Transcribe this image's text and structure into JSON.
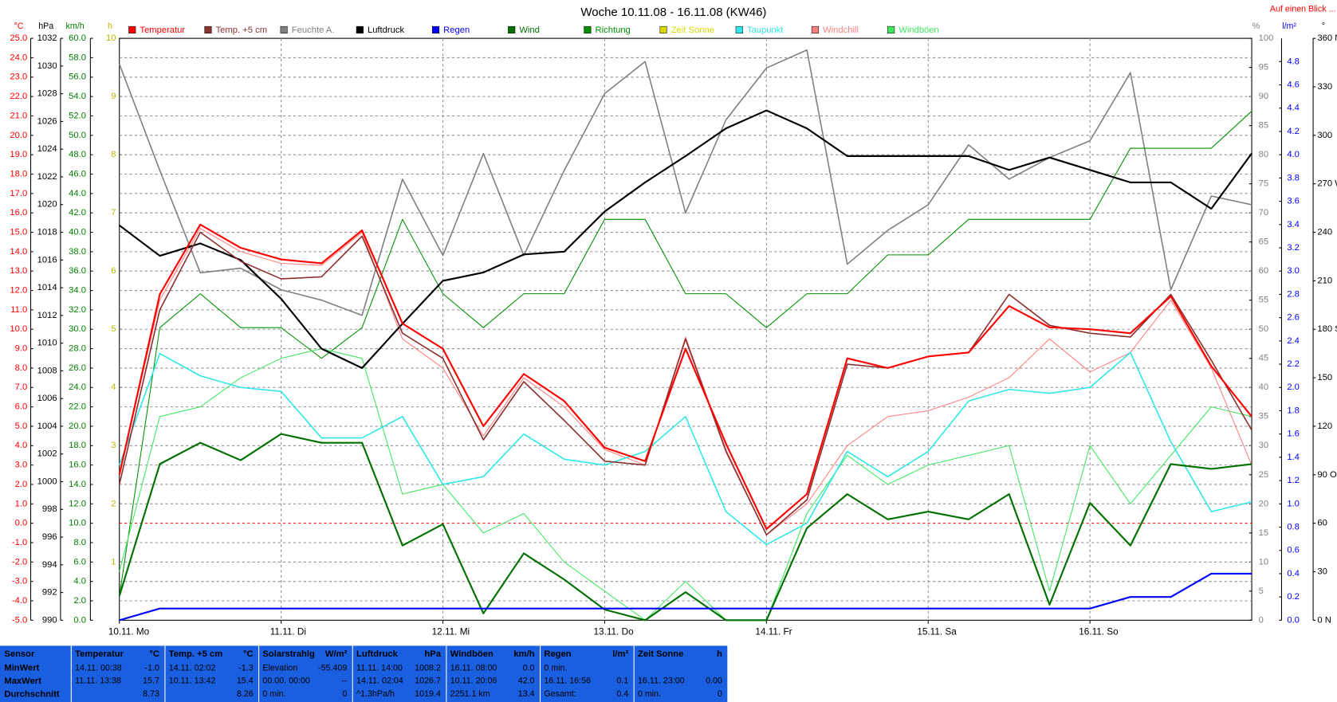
{
  "chart_data": {
    "type": "line",
    "title": "Woche 10.11.08 - 16.11.08 (KW46)",
    "link": "Auf einen Blick ...",
    "xlim": [
      0,
      168
    ],
    "xticks": [
      {
        "value": 0,
        "label": "10.11. Mo"
      },
      {
        "value": 24,
        "label": "11.11. Di"
      },
      {
        "value": 48,
        "label": "12.11. Mi"
      },
      {
        "value": 72,
        "label": "13.11. Do"
      },
      {
        "value": 96,
        "label": "14.11. Fr"
      },
      {
        "value": 120,
        "label": "15.11. Sa"
      },
      {
        "value": 144,
        "label": "16.11. So"
      }
    ],
    "x": [
      0,
      6,
      12,
      18,
      24,
      30,
      36,
      42,
      48,
      54,
      60,
      66,
      72,
      78,
      84,
      90,
      96,
      102,
      108,
      114,
      120,
      126,
      132,
      138,
      144,
      150,
      156,
      162,
      168
    ],
    "axes": {
      "C": {
        "label": "°C",
        "color": "#ff0000",
        "lim": [
          -5,
          25
        ],
        "ticks": [
          {
            "value": -5,
            "label": "-5.0"
          },
          {
            "value": -4,
            "label": "-4.0"
          },
          {
            "value": -3,
            "label": "-3.0"
          },
          {
            "value": -2,
            "label": "-2.0"
          },
          {
            "value": -1,
            "label": "-1.0"
          },
          {
            "value": 0,
            "label": "0.0"
          },
          {
            "value": 1,
            "label": "1.0"
          },
          {
            "value": 2,
            "label": "2.0"
          },
          {
            "value": 3,
            "label": "3.0"
          },
          {
            "value": 4,
            "label": "4.0"
          },
          {
            "value": 5,
            "label": "5.0"
          },
          {
            "value": 6,
            "label": "6.0"
          },
          {
            "value": 7,
            "label": "7.0"
          },
          {
            "value": 8,
            "label": "8.0"
          },
          {
            "value": 9,
            "label": "9.0"
          },
          {
            "value": 10,
            "label": "10.0"
          },
          {
            "value": 11,
            "label": "11.0"
          },
          {
            "value": 12,
            "label": "12.0"
          },
          {
            "value": 13,
            "label": "13.0"
          },
          {
            "value": 14,
            "label": "14.0"
          },
          {
            "value": 15,
            "label": "15.0"
          },
          {
            "value": 16,
            "label": "16.0"
          },
          {
            "value": 17,
            "label": "17.0"
          },
          {
            "value": 18,
            "label": "18.0"
          },
          {
            "value": 19,
            "label": "19.0"
          },
          {
            "value": 20,
            "label": "20.0"
          },
          {
            "value": 21,
            "label": "21.0"
          },
          {
            "value": 22,
            "label": "22.0"
          },
          {
            "value": 23,
            "label": "23.0"
          },
          {
            "value": 24,
            "label": "24.0"
          },
          {
            "value": 25,
            "label": "25.0"
          }
        ]
      },
      "hPa": {
        "label": "hPa",
        "color": "#000000",
        "lim": [
          990,
          1032
        ],
        "ticks": [
          990,
          992,
          994,
          996,
          998,
          1000,
          1002,
          1004,
          1006,
          1008,
          1010,
          1012,
          1014,
          1016,
          1018,
          1020,
          1022,
          1024,
          1026,
          1028,
          1030,
          1032
        ]
      },
      "kmh": {
        "label": "km/h",
        "color": "#008000",
        "lim": [
          0,
          60
        ],
        "ticks": [
          {
            "value": 0,
            "label": "0.0"
          },
          {
            "value": 2,
            "label": "2.0"
          },
          {
            "value": 4,
            "label": "4.0"
          },
          {
            "value": 6,
            "label": "6.0"
          },
          {
            "value": 8,
            "label": "8.0"
          },
          {
            "value": 10,
            "label": "10.0"
          },
          {
            "value": 12,
            "label": "12.0"
          },
          {
            "value": 14,
            "label": "14.0"
          },
          {
            "value": 16,
            "label": "16.0"
          },
          {
            "value": 18,
            "label": "18.0"
          },
          {
            "value": 20,
            "label": "20.0"
          },
          {
            "value": 22,
            "label": "22.0"
          },
          {
            "value": 24,
            "label": "24.0"
          },
          {
            "value": 26,
            "label": "26.0"
          },
          {
            "value": 28,
            "label": "28.0"
          },
          {
            "value": 30,
            "label": "30.0"
          },
          {
            "value": 32,
            "label": "32.0"
          },
          {
            "value": 34,
            "label": "34.0"
          },
          {
            "value": 36,
            "label": "36.0"
          },
          {
            "value": 38,
            "label": "38.0"
          },
          {
            "value": 40,
            "label": "40.0"
          },
          {
            "value": 42,
            "label": "42.0"
          },
          {
            "value": 44,
            "label": "44.0"
          },
          {
            "value": 46,
            "label": "46.0"
          },
          {
            "value": 48,
            "label": "48.0"
          },
          {
            "value": 50,
            "label": "50.0"
          },
          {
            "value": 52,
            "label": "52.0"
          },
          {
            "value": 54,
            "label": "54.0"
          },
          {
            "value": 56,
            "label": "56.0"
          },
          {
            "value": 58,
            "label": "58.0"
          },
          {
            "value": 60,
            "label": "60.0"
          }
        ]
      },
      "h": {
        "label": "h",
        "color": "#b8b800",
        "lim": [
          0,
          10
        ],
        "ticks": [
          1,
          2,
          3,
          4,
          5,
          6,
          7,
          8,
          9,
          10
        ]
      },
      "pct": {
        "label": "%",
        "color": "#808080",
        "lim": [
          0,
          100
        ],
        "ticks": [
          0,
          5,
          10,
          15,
          20,
          25,
          30,
          35,
          40,
          45,
          50,
          55,
          60,
          65,
          70,
          75,
          80,
          85,
          90,
          95,
          100
        ]
      },
      "lm2": {
        "label": "l/m²",
        "color": "#0000ff",
        "lim": [
          0,
          5
        ],
        "ticks": [
          {
            "value": 0,
            "label": "0.0"
          },
          0.2,
          0.4,
          0.6,
          0.8,
          {
            "value": 1,
            "label": "1.0"
          },
          1.2,
          1.4,
          1.6,
          1.8,
          {
            "value": 2,
            "label": "2.0"
          },
          2.2,
          2.4,
          2.6,
          2.8,
          {
            "value": 3,
            "label": "3.0"
          },
          3.2,
          3.4,
          3.6,
          3.8,
          {
            "value": 4,
            "label": "4.0"
          },
          4.2,
          4.4,
          4.6,
          4.8
        ]
      },
      "deg": {
        "label": "°",
        "color": "#000000",
        "lim": [
          0,
          360
        ],
        "ticks": [
          {
            "value": 0,
            "label": "0 N"
          },
          30,
          60,
          {
            "value": 90,
            "label": "90 O"
          },
          120,
          150,
          {
            "value": 180,
            "label": "180 S"
          },
          210,
          240,
          {
            "value": 270,
            "label": "270 W"
          },
          300,
          330,
          {
            "value": 360,
            "label": "360 N"
          }
        ]
      }
    },
    "grid": true,
    "series": [
      {
        "name": "Temperatur",
        "color": "#ff0000",
        "axis": "C",
        "width": 2,
        "values": [
          2.5,
          11.8,
          15.4,
          14.2,
          13.6,
          13.4,
          15.1,
          10.3,
          9.0,
          5.0,
          7.7,
          6.3,
          3.9,
          3.2,
          9.0,
          4.1,
          -0.3,
          1.5,
          8.5,
          8.0,
          8.6,
          8.8,
          11.2,
          10.1,
          10.0,
          9.8,
          11.7,
          8.1,
          5.5
        ]
      },
      {
        "name": "Temp. +5 cm",
        "color": "#8b3030",
        "axis": "C",
        "width": 1.5,
        "values": [
          2.0,
          11.0,
          15.0,
          13.5,
          12.6,
          12.7,
          14.8,
          9.8,
          8.5,
          4.3,
          7.3,
          5.3,
          3.2,
          3.0,
          9.5,
          3.7,
          -0.6,
          1.2,
          8.2,
          8.0,
          8.6,
          8.8,
          11.8,
          10.2,
          9.8,
          9.6,
          11.8,
          8.4,
          4.8
        ]
      },
      {
        "name": "Feuchte A.",
        "color": "#808080",
        "axis": "pct",
        "width": 1.5,
        "values": [
          95.6,
          77.3,
          59.7,
          60.5,
          56.8,
          55,
          52.4,
          75.8,
          62.7,
          80.2,
          62.7,
          77.3,
          90.5,
          96,
          70,
          86,
          94.9,
          98,
          61.2,
          67,
          71.4,
          81.7,
          75.8,
          79.5,
          82.4,
          94.1,
          56.8,
          72.9,
          71.4
        ]
      },
      {
        "name": "Luftdruck",
        "color": "#000000",
        "axis": "hPa",
        "width": 2,
        "values": [
          1018.5,
          1016.3,
          1017.2,
          1016.0,
          1013.2,
          1009.6,
          1008.2,
          1011.4,
          1014.5,
          1015.1,
          1016.4,
          1016.6,
          1019.5,
          1021.6,
          1023.5,
          1025.5,
          1026.8,
          1025.5,
          1023.5,
          1023.5,
          1023.5,
          1023.5,
          1022.5,
          1023.4,
          1022.5,
          1021.6,
          1021.6,
          1019.7,
          1023.7
        ]
      },
      {
        "name": "Regen",
        "color": "#0000ff",
        "axis": "lm2",
        "width": 2,
        "values": [
          0,
          0.1,
          0.1,
          0.1,
          0.1,
          0.1,
          0.1,
          0.1,
          0.1,
          0.1,
          0.1,
          0.1,
          0.1,
          0.1,
          0.1,
          0.1,
          0.1,
          0.1,
          0.1,
          0.1,
          0.1,
          0.1,
          0.1,
          0.1,
          0.1,
          0.2,
          0.2,
          0.4,
          0.4
        ]
      },
      {
        "name": "Wind",
        "color": "#007000",
        "axis": "kmh",
        "width": 2,
        "values": [
          2.5,
          16.1,
          18.3,
          16.5,
          19.2,
          18.3,
          18.3,
          7.7,
          9.9,
          0.7,
          6.9,
          4.2,
          1.1,
          0,
          2.9,
          0,
          0,
          9.5,
          13,
          10.4,
          11.2,
          10.4,
          13,
          1.6,
          12.1,
          7.7,
          16.1,
          15.6,
          16.1
        ]
      },
      {
        "name": "Richtung",
        "color": "#009000",
        "axis": "deg",
        "width": 1,
        "values": [
          15,
          181,
          202,
          181,
          181,
          162,
          181,
          248,
          202,
          181,
          202,
          202,
          248,
          248,
          202,
          202,
          181,
          202,
          202,
          226,
          226,
          248,
          248,
          248,
          248,
          292,
          292,
          292,
          315
        ]
      },
      {
        "name": "Zeit Sonne",
        "color": "#d8d800",
        "axis": "h",
        "width": 1,
        "values": [
          null,
          null,
          null,
          null,
          null,
          null,
          null,
          null,
          null,
          null,
          null,
          null,
          null,
          null,
          null,
          null,
          null,
          null,
          null,
          null,
          null,
          null,
          null,
          null,
          null,
          null,
          null,
          null,
          null
        ]
      },
      {
        "name": "Taupunkt",
        "color": "#30e8e8",
        "axis": "C",
        "width": 1.5,
        "values": [
          3.0,
          8.75,
          7.6,
          7.0,
          6.8,
          4.4,
          4.4,
          5.5,
          2.0,
          2.4,
          4.6,
          3.3,
          3.0,
          3.7,
          5.5,
          0.6,
          -1.1,
          0.0,
          3.7,
          2.4,
          3.7,
          6.3,
          6.9,
          6.7,
          7.0,
          8.8,
          4.2,
          0.6,
          1.1
        ]
      },
      {
        "name": "Windchill",
        "color": "#ff8080",
        "axis": "C",
        "width": 1,
        "values": [
          2.5,
          11.5,
          15.2,
          14.0,
          13.4,
          13.3,
          15.0,
          9.5,
          8.0,
          4.5,
          7.5,
          6.0,
          3.8,
          3.0,
          9.6,
          3.8,
          -0.6,
          1.0,
          4.0,
          5.5,
          5.8,
          6.5,
          7.5,
          9.5,
          7.8,
          8.8,
          11.5,
          8.0,
          3.0
        ]
      },
      {
        "name": "Windböen",
        "color": "#40e860",
        "axis": "kmh",
        "width": 1,
        "values": [
          5.0,
          21,
          22,
          25,
          27,
          28,
          27,
          13,
          14,
          9,
          11,
          6,
          3,
          0,
          4,
          0,
          0,
          11,
          17,
          14,
          16,
          17,
          18,
          3,
          18,
          12,
          17,
          22,
          21
        ]
      }
    ]
  },
  "table": {
    "rowlabels": [
      "Sensor",
      "MinWert",
      "MaxWert",
      "Durchschnitt"
    ],
    "columns": [
      {
        "name": "Temperatur",
        "unit": "°C",
        "rows": [
          [
            "14.11. 00:38",
            "-1.0"
          ],
          [
            "11.11. 13:38",
            "15.7"
          ],
          [
            "8.73"
          ]
        ]
      },
      {
        "name": "Temp. +5 cm",
        "unit": "°C",
        "rows": [
          [
            "14.11. 02:02",
            "-1.3"
          ],
          [
            "10.11. 13:42",
            "15.4"
          ],
          [
            "8.26"
          ]
        ]
      },
      {
        "name": "Solarstrahlg",
        "unit": "W/m²",
        "rows": [
          [
            "Elevation",
            "-55.409"
          ],
          [
            "00.00. 00:00",
            "--"
          ],
          [
            "0 min.",
            "0"
          ]
        ]
      },
      {
        "name": "Luftdruck",
        "unit": "hPa",
        "rows": [
          [
            "11.11. 14:00",
            "1008.2"
          ],
          [
            "14.11. 02:04",
            "1026.7"
          ],
          [
            "^1.3hPa/h",
            "1019.4"
          ]
        ]
      },
      {
        "name": "Windböen",
        "unit": "km/h",
        "rows": [
          [
            "16.11. 08:00",
            "0.0"
          ],
          [
            "10.11. 20:06",
            "42.0"
          ],
          [
            "2251.1 km",
            "13.4"
          ]
        ]
      },
      {
        "name": "Regen",
        "unit": "l/m²",
        "rows": [
          [
            "0 min."
          ],
          [
            "16.11. 16:56",
            "0.1"
          ],
          [
            "Gesamt:",
            "0.4"
          ]
        ]
      },
      {
        "name": "Zeit Sonne",
        "unit": "h",
        "rows": [
          [],
          [
            "16.11. 23:00",
            "0.00"
          ],
          [
            "0 min.",
            "0"
          ]
        ]
      }
    ]
  }
}
